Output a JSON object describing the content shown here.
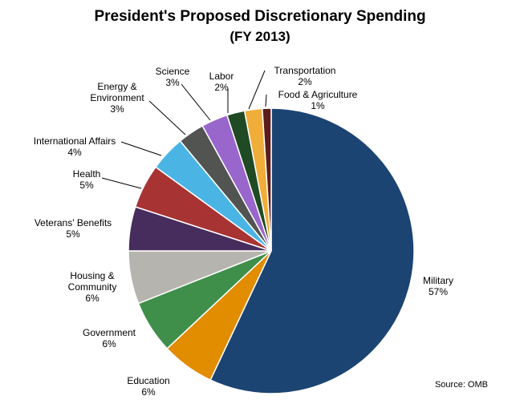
{
  "chart_data": {
    "type": "pie",
    "title": "President's Proposed Discretionary Spending",
    "subtitle": "(FY 2013)",
    "source": "Source: OMB",
    "direction": "clockwise from top",
    "slices": [
      {
        "label": "Military",
        "value": 57,
        "display": "57%",
        "color": "#1b4473"
      },
      {
        "label": "Education",
        "value": 6,
        "display": "6%",
        "color": "#e28c00"
      },
      {
        "label": "Government",
        "value": 6,
        "display": "6%",
        "color": "#3f8f4b"
      },
      {
        "label": "Housing & Community",
        "value": 6,
        "display": "6%",
        "color": "#b6b4ae"
      },
      {
        "label": "Veterans' Benefits",
        "value": 5,
        "display": "5%",
        "color": "#472c5e"
      },
      {
        "label": "Health",
        "value": 5,
        "display": "5%",
        "color": "#a83333"
      },
      {
        "label": "International Affairs",
        "value": 4,
        "display": "4%",
        "color": "#4ab5e5"
      },
      {
        "label": "Energy & Environment",
        "value": 3,
        "display": "3%",
        "color": "#525452"
      },
      {
        "label": "Science",
        "value": 3,
        "display": "3%",
        "color": "#9966cc"
      },
      {
        "label": "Labor",
        "value": 2,
        "display": "2%",
        "color": "#1f4a24"
      },
      {
        "label": "Transportation",
        "value": 2,
        "display": "2%",
        "color": "#f0ad3a"
      },
      {
        "label": "Food & Agriculture",
        "value": 1,
        "display": "1%",
        "color": "#5c1c1c"
      }
    ]
  }
}
